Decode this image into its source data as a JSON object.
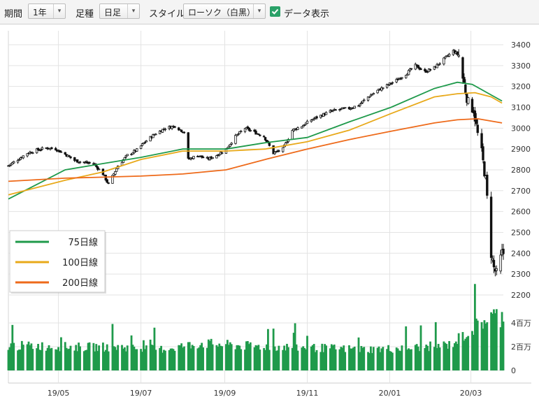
{
  "toolbar": {
    "period_label": "期間",
    "period_value": "1年",
    "interval_label": "足種",
    "interval_value": "日足",
    "style_label": "スタイル",
    "style_value": "ローソク（白黒）",
    "data_display_label": "データ表示",
    "data_display_checked": true,
    "check_color": "#2aa168"
  },
  "chart_data": [
    {
      "type": "candlestick",
      "title": "",
      "x_tick_labels": [
        "19/05",
        "19/07",
        "19/09",
        "19/11",
        "20/01",
        "20/03"
      ],
      "y_tick_labels": [
        "3400",
        "3300",
        "3200",
        "3100",
        "3000",
        "2900",
        "2800",
        "2700",
        "2600",
        "2500",
        "2400",
        "2300",
        "2200"
      ],
      "ylim": [
        2200,
        3400
      ],
      "grid": true,
      "candle_style": "black-white",
      "close_points": [
        [
          "19/03/25",
          2820
        ],
        [
          "19/04/01",
          2850
        ],
        [
          "19/04/08",
          2880
        ],
        [
          "19/04/15",
          2895
        ],
        [
          "19/04/22",
          2905
        ],
        [
          "19/04/29",
          2900
        ],
        [
          "19/05/06",
          2875
        ],
        [
          "19/05/13",
          2845
        ],
        [
          "19/05/20",
          2835
        ],
        [
          "19/05/27",
          2830
        ],
        [
          "19/06/03",
          2780
        ],
        [
          "19/06/07",
          2730
        ],
        [
          "19/06/14",
          2820
        ],
        [
          "19/06/21",
          2870
        ],
        [
          "19/06/28",
          2895
        ],
        [
          "19/07/05",
          2940
        ],
        [
          "19/07/12",
          2975
        ],
        [
          "19/07/19",
          3000
        ],
        [
          "19/07/26",
          3010
        ],
        [
          "19/08/02",
          2980
        ],
        [
          "19/08/05",
          2850
        ],
        [
          "19/08/12",
          2870
        ],
        [
          "19/08/19",
          2850
        ],
        [
          "19/08/26",
          2870
        ],
        [
          "19/09/02",
          2900
        ],
        [
          "19/09/09",
          2960
        ],
        [
          "19/09/16",
          3000
        ],
        [
          "19/09/23",
          2980
        ],
        [
          "19/09/30",
          2960
        ],
        [
          "19/10/07",
          2880
        ],
        [
          "19/10/14",
          2900
        ],
        [
          "19/10/21",
          2990
        ],
        [
          "19/10/28",
          3010
        ],
        [
          "19/11/04",
          3040
        ],
        [
          "19/11/11",
          3060
        ],
        [
          "19/11/18",
          3080
        ],
        [
          "19/11/25",
          3090
        ],
        [
          "19/12/02",
          3095
        ],
        [
          "19/12/09",
          3110
        ],
        [
          "19/12/16",
          3150
        ],
        [
          "19/12/23",
          3180
        ],
        [
          "19/12/30",
          3205
        ],
        [
          "20/01/06",
          3230
        ],
        [
          "20/01/13",
          3260
        ],
        [
          "20/01/20",
          3300
        ],
        [
          "20/01/27",
          3270
        ],
        [
          "20/02/03",
          3290
        ],
        [
          "20/02/10",
          3330
        ],
        [
          "20/02/17",
          3370
        ],
        [
          "20/02/21",
          3350
        ],
        [
          "20/02/24",
          3240
        ],
        [
          "20/02/28",
          3120
        ],
        [
          "20/03/03",
          3090
        ],
        [
          "20/03/06",
          2970
        ],
        [
          "20/03/09",
          2880
        ],
        [
          "20/03/12",
          2750
        ],
        [
          "20/03/16",
          2400
        ],
        [
          "20/03/18",
          2330
        ],
        [
          "20/03/20",
          2300
        ],
        [
          "20/03/24",
          2400
        ]
      ],
      "series": [
        {
          "name": "75日線",
          "color": "#1f9a4b",
          "points": [
            [
              "19/03/25",
              2660
            ],
            [
              "19/04/15",
              2730
            ],
            [
              "19/05/06",
              2800
            ],
            [
              "19/06/03",
              2830
            ],
            [
              "19/07/01",
              2860
            ],
            [
              "19/08/01",
              2900
            ],
            [
              "19/09/02",
              2900
            ],
            [
              "19/10/01",
              2930
            ],
            [
              "19/11/01",
              2955
            ],
            [
              "19/12/02",
              3030
            ],
            [
              "20/01/02",
              3100
            ],
            [
              "20/02/03",
              3190
            ],
            [
              "20/02/20",
              3220
            ],
            [
              "20/03/02",
              3210
            ],
            [
              "20/03/13",
              3170
            ],
            [
              "20/03/24",
              3130
            ]
          ]
        },
        {
          "name": "100日線",
          "color": "#e8a91a",
          "points": [
            [
              "19/03/25",
              2680
            ],
            [
              "19/05/06",
              2750
            ],
            [
              "19/06/03",
              2790
            ],
            [
              "19/07/01",
              2850
            ],
            [
              "19/08/01",
              2890
            ],
            [
              "19/09/02",
              2890
            ],
            [
              "19/10/01",
              2900
            ],
            [
              "19/11/01",
              2935
            ],
            [
              "19/12/02",
              2990
            ],
            [
              "20/01/02",
              3070
            ],
            [
              "20/02/03",
              3150
            ],
            [
              "20/02/20",
              3165
            ],
            [
              "20/03/04",
              3170
            ],
            [
              "20/03/16",
              3150
            ],
            [
              "20/03/24",
              3120
            ]
          ]
        },
        {
          "name": "200日線",
          "color": "#ee6a1a",
          "points": [
            [
              "19/03/25",
              2745
            ],
            [
              "19/05/06",
              2760
            ],
            [
              "19/07/01",
              2770
            ],
            [
              "19/08/01",
              2780
            ],
            [
              "19/09/02",
              2800
            ],
            [
              "19/10/01",
              2850
            ],
            [
              "19/11/01",
              2900
            ],
            [
              "19/12/02",
              2945
            ],
            [
              "20/01/02",
              2985
            ],
            [
              "20/02/03",
              3025
            ],
            [
              "20/02/20",
              3040
            ],
            [
              "20/03/06",
              3045
            ],
            [
              "20/03/24",
              3025
            ]
          ]
        }
      ],
      "legend": [
        {
          "label": "75日線",
          "color": "#1f9a4b"
        },
        {
          "label": "100日線",
          "color": "#e8a91a"
        },
        {
          "label": "200日線",
          "color": "#ee6a1a"
        }
      ],
      "legend_position": "left-middle"
    },
    {
      "type": "bar",
      "title": "",
      "y_tick_labels": [
        "4百万",
        "2百万",
        "0"
      ],
      "ylim": [
        0,
        5
      ],
      "unit": "百万",
      "color": "#1f9a4b",
      "values_by_period": [
        [
          "19/04",
          2.1
        ],
        [
          "19/05",
          2.0
        ],
        [
          "19/06",
          2.0
        ],
        [
          "19/07",
          1.8
        ],
        [
          "19/08",
          2.3
        ],
        [
          "19/09",
          2.1
        ],
        [
          "19/10",
          2.0
        ],
        [
          "19/11",
          1.9
        ],
        [
          "19/12",
          1.8
        ],
        [
          "20/01",
          1.9
        ],
        [
          "20/02",
          2.2
        ],
        [
          "20/03",
          4.6
        ]
      ]
    }
  ]
}
